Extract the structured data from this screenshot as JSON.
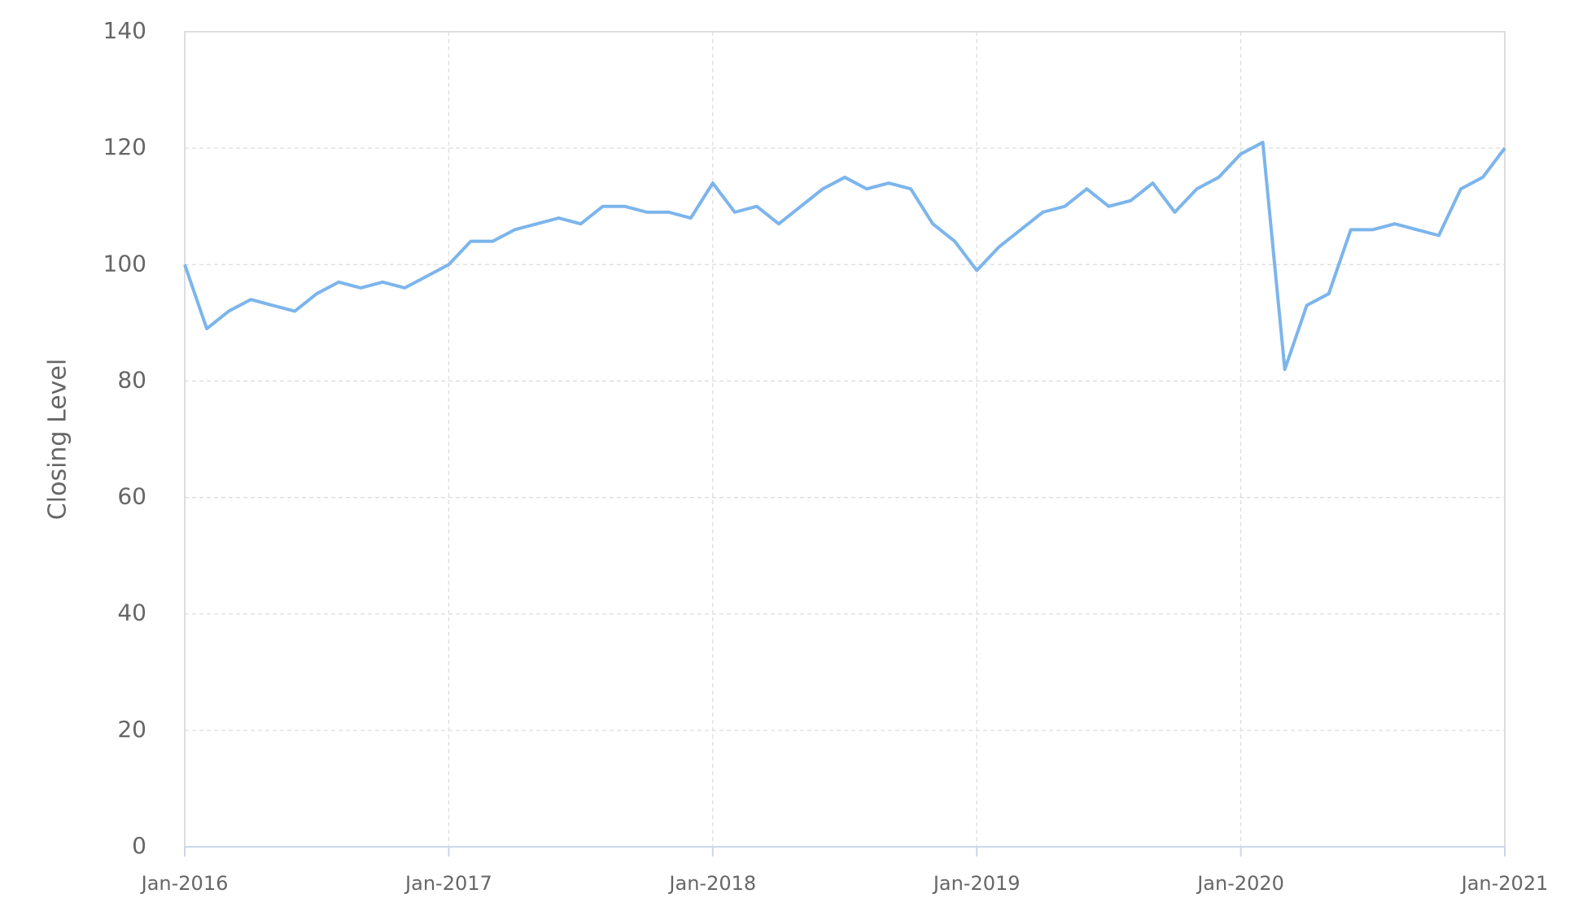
{
  "chart_data": {
    "type": "line",
    "y_label": "Closing Level",
    "x": [
      "2016-01",
      "2016-02",
      "2016-03",
      "2016-04",
      "2016-05",
      "2016-06",
      "2016-07",
      "2016-08",
      "2016-09",
      "2016-10",
      "2016-11",
      "2016-12",
      "2017-01",
      "2017-02",
      "2017-03",
      "2017-04",
      "2017-05",
      "2017-06",
      "2017-07",
      "2017-08",
      "2017-09",
      "2017-10",
      "2017-11",
      "2017-12",
      "2018-01",
      "2018-02",
      "2018-03",
      "2018-04",
      "2018-05",
      "2018-06",
      "2018-07",
      "2018-08",
      "2018-09",
      "2018-10",
      "2018-11",
      "2018-12",
      "2019-01",
      "2019-02",
      "2019-03",
      "2019-04",
      "2019-05",
      "2019-06",
      "2019-07",
      "2019-08",
      "2019-09",
      "2019-10",
      "2019-11",
      "2019-12",
      "2020-01",
      "2020-02",
      "2020-03",
      "2020-04",
      "2020-05",
      "2020-06",
      "2020-07",
      "2020-08",
      "2020-09",
      "2020-10",
      "2020-11",
      "2020-12",
      "2021-01"
    ],
    "series": [
      {
        "name": "Closing Level",
        "color": "#7cb5ec",
        "values": [
          100,
          89,
          92,
          94,
          93,
          92,
          95,
          97,
          96,
          97,
          96,
          98,
          100,
          104,
          104,
          106,
          107,
          108,
          107,
          110,
          110,
          109,
          109,
          108,
          114,
          109,
          110,
          107,
          110,
          113,
          115,
          113,
          114,
          113,
          107,
          104,
          99,
          103,
          106,
          109,
          110,
          113,
          110,
          111,
          114,
          109,
          113,
          115,
          119,
          121,
          82,
          93,
          95,
          106,
          106,
          107,
          106,
          105,
          113,
          115,
          120
        ]
      }
    ],
    "xlim": [
      "2016-01",
      "2021-01"
    ],
    "xticks": [
      {
        "value": "2016-01",
        "label": "Jan-2016"
      },
      {
        "value": "2017-01",
        "label": "Jan-2017"
      },
      {
        "value": "2018-01",
        "label": "Jan-2018"
      },
      {
        "value": "2019-01",
        "label": "Jan-2019"
      },
      {
        "value": "2020-01",
        "label": "Jan-2020"
      },
      {
        "value": "2021-01",
        "label": "Jan-2021"
      }
    ],
    "ylim": [
      0,
      140
    ],
    "yticks": [
      0,
      20,
      40,
      60,
      80,
      100,
      120,
      140
    ],
    "grid": true
  }
}
